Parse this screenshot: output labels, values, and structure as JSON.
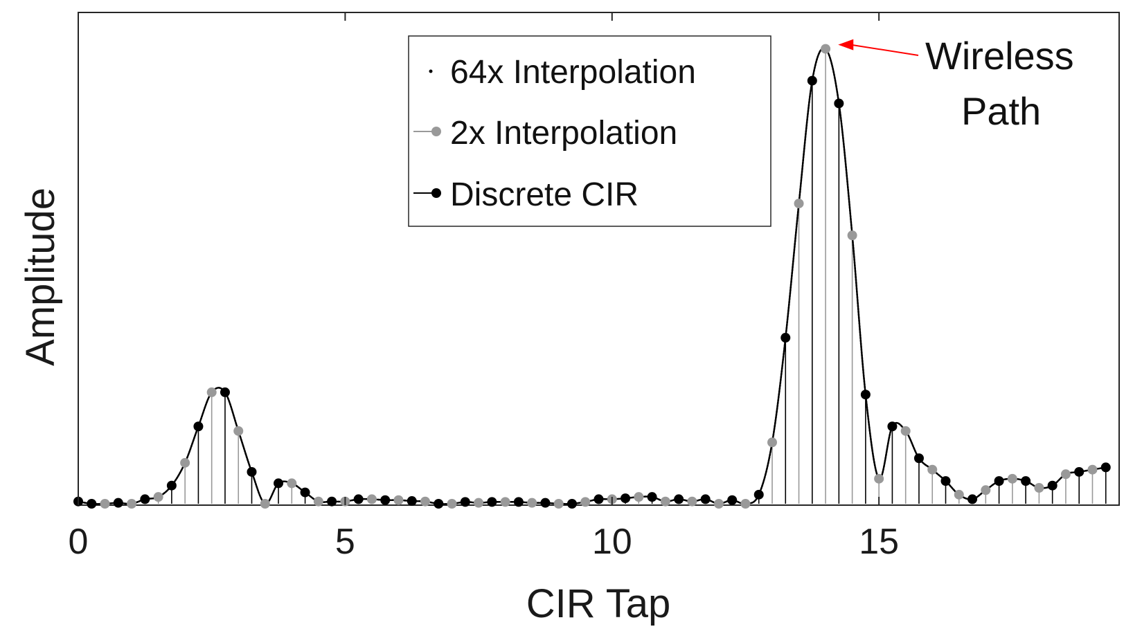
{
  "chart_data": {
    "type": "line",
    "xlabel": "CIR Tap",
    "ylabel": "Amplitude",
    "xlim": [
      0,
      19.5
    ],
    "ylim": [
      0,
      1.08
    ],
    "xticks": [
      0,
      5,
      10,
      15
    ],
    "grid": false,
    "legend_position": "top-center",
    "legend": [
      {
        "name": "64x Interpolation",
        "style": "dot",
        "color": "#000000"
      },
      {
        "name": "2x Interpolation",
        "style": "line-marker",
        "color": "#999999"
      },
      {
        "name": "Discrete CIR",
        "style": "line-marker",
        "color": "#000000"
      }
    ],
    "annotation": {
      "text_line1": "Wireless",
      "text_line2": "Path",
      "arrow_color": "#ff0000",
      "target_x": 14.08,
      "target_y": 1.0
    },
    "discrete_cir": {
      "name": "Discrete CIR",
      "color": "#000000",
      "x": [
        0.0,
        0.25,
        0.75,
        1.25,
        1.75,
        2.25,
        2.75,
        3.25,
        3.75,
        4.25,
        4.75,
        5.25,
        5.75,
        6.25,
        6.75,
        7.25,
        7.75,
        8.25,
        8.75,
        9.25,
        9.75,
        10.25,
        10.75,
        11.25,
        11.75,
        12.25,
        12.75,
        13.25,
        13.75,
        14.25,
        14.75,
        15.25,
        15.75,
        16.25,
        16.75,
        17.25,
        17.75,
        18.25,
        18.75,
        19.25
      ],
      "y": [
        0.005,
        0.0,
        0.002,
        0.01,
        0.04,
        0.17,
        0.245,
        0.07,
        0.045,
        0.025,
        0.005,
        0.01,
        0.008,
        0.006,
        0.0,
        0.004,
        0.004,
        0.004,
        0.002,
        0.0,
        0.01,
        0.012,
        0.015,
        0.01,
        0.01,
        0.008,
        0.02,
        0.365,
        0.93,
        0.88,
        0.24,
        0.17,
        0.1,
        0.05,
        0.01,
        0.05,
        0.05,
        0.04,
        0.07,
        0.08
      ]
    },
    "interp_2x": {
      "name": "2x Interpolation",
      "color": "#999999",
      "x": [
        0.5,
        1.0,
        1.5,
        2.0,
        2.5,
        3.0,
        3.5,
        4.0,
        4.5,
        5.0,
        5.5,
        6.0,
        6.5,
        7.0,
        7.5,
        8.0,
        8.5,
        9.0,
        9.5,
        10.0,
        10.5,
        11.0,
        11.5,
        12.0,
        12.5,
        13.0,
        13.5,
        14.0,
        14.5,
        15.0,
        15.5,
        16.0,
        16.5,
        17.0,
        17.5,
        18.0,
        18.5,
        19.0
      ],
      "y": [
        0.0,
        0.0,
        0.015,
        0.09,
        0.245,
        0.16,
        0.0,
        0.045,
        0.005,
        0.005,
        0.01,
        0.008,
        0.005,
        0.0,
        0.002,
        0.004,
        0.002,
        0.0,
        0.004,
        0.01,
        0.015,
        0.005,
        0.005,
        0.0,
        0.0,
        0.135,
        0.66,
        1.0,
        0.59,
        0.055,
        0.16,
        0.075,
        0.02,
        0.03,
        0.055,
        0.035,
        0.065,
        0.075
      ]
    }
  }
}
